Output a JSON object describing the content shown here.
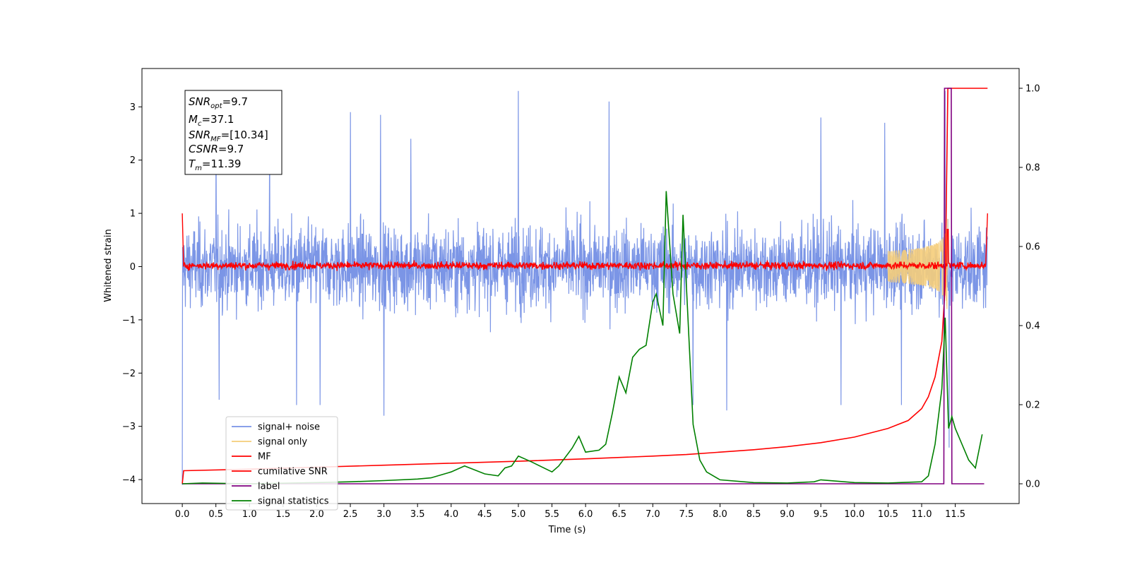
{
  "chart_data": {
    "type": "line",
    "title": "",
    "xlabel": "Time (s)",
    "ylabel": "Whitened strain",
    "ylabel_right": "",
    "xlim": [
      -0.6,
      12.45
    ],
    "ylim": [
      -4.45,
      3.72
    ],
    "ylim_right": [
      -0.05,
      1.05
    ],
    "grid": false,
    "legend_position": "lower-left",
    "x_ticks": [
      "0.0",
      "0.5",
      "1.0",
      "1.5",
      "2.0",
      "2.5",
      "3.0",
      "3.5",
      "4.0",
      "4.5",
      "5.0",
      "5.5",
      "6.0",
      "6.5",
      "7.0",
      "7.5",
      "8.0",
      "8.5",
      "9.0",
      "9.5",
      "10.0",
      "10.5",
      "11.0",
      "11.5"
    ],
    "y_ticks": [
      3,
      2,
      1,
      0,
      -1,
      -2,
      -3,
      -4
    ],
    "y_ticks_right": [
      "0.0",
      "0.2",
      "0.4",
      "0.6",
      "0.8",
      "1.0"
    ],
    "annotation_box": {
      "snr_opt": "=9.7",
      "mc": "=37.1",
      "snr_mf": "=[10.34]",
      "csnr": "=9.7",
      "tm": "=11.39"
    },
    "series": [
      {
        "name": "signal+ noise",
        "color": "#7893e6",
        "axis": "left",
        "description_points": {
          "x_range": [
            0.0,
            11.98
          ],
          "amplitude_envelope": [
            [
              0.0,
              1.5
            ],
            [
              12.0,
              1.5
            ]
          ],
          "peaks": [
            [
              0.5,
              2.5
            ],
            [
              1.3,
              2.5
            ],
            [
              2.5,
              2.9
            ],
            [
              2.95,
              2.85
            ],
            [
              3.4,
              2.4
            ],
            [
              5.0,
              3.3
            ],
            [
              6.35,
              3.1
            ],
            [
              9.5,
              2.8
            ],
            [
              10.45,
              2.7
            ],
            [
              11.35,
              3.3
            ],
            [
              0.0,
              -4.1
            ],
            [
              0.55,
              -2.5
            ],
            [
              1.7,
              -2.6
            ],
            [
              2.05,
              -2.6
            ],
            [
              3.0,
              -2.8
            ],
            [
              7.6,
              -2.6
            ],
            [
              8.1,
              -2.7
            ],
            [
              9.8,
              -2.6
            ],
            [
              10.7,
              -2.6
            ],
            [
              11.41,
              -3.4
            ]
          ]
        }
      },
      {
        "name": "signal only",
        "color": "#f5cd7a",
        "axis": "left",
        "chirp": {
          "start": 10.5,
          "merger": 11.39,
          "peak_amplitude": 0.9
        }
      },
      {
        "name": "MF",
        "color": "#ff0000",
        "axis": "left",
        "noise_band": [
          -0.1,
          0.15
        ],
        "spike_time": 11.39,
        "spike_value": 0.7,
        "start_value": 1.0,
        "end_value": 1.0
      },
      {
        "name": "cumilative SNR",
        "color": "#ff0000",
        "axis": "right",
        "x": [
          0.0,
          0.02,
          1.0,
          2.0,
          3.0,
          4.0,
          5.0,
          6.0,
          7.0,
          7.5,
          8.0,
          8.5,
          9.0,
          9.5,
          10.0,
          10.5,
          10.8,
          11.0,
          11.1,
          11.2,
          11.3,
          11.35,
          11.39,
          11.45,
          11.98
        ],
        "values": [
          0.0,
          0.033,
          0.037,
          0.042,
          0.047,
          0.052,
          0.057,
          0.063,
          0.07,
          0.074,
          0.08,
          0.086,
          0.094,
          0.104,
          0.118,
          0.14,
          0.16,
          0.19,
          0.22,
          0.27,
          0.36,
          0.5,
          1.0,
          1.0,
          1.0
        ]
      },
      {
        "name": "label",
        "color": "#800080",
        "axis": "right",
        "x": [
          0.0,
          11.33,
          11.34,
          11.44,
          11.45,
          11.93
        ],
        "values": [
          0.0,
          0.0,
          1.0,
          1.0,
          0.0,
          0.0
        ]
      },
      {
        "name": "signal statistics",
        "color": "#008000",
        "axis": "right",
        "x": [
          0.0,
          0.3,
          1.0,
          2.0,
          2.5,
          3.0,
          3.5,
          3.7,
          4.0,
          4.2,
          4.5,
          4.7,
          4.8,
          4.9,
          5.0,
          5.2,
          5.5,
          5.6,
          5.8,
          5.9,
          6.0,
          6.2,
          6.3,
          6.4,
          6.5,
          6.6,
          6.7,
          6.8,
          6.9,
          7.0,
          7.05,
          7.15,
          7.2,
          7.3,
          7.4,
          7.45,
          7.5,
          7.6,
          7.7,
          7.8,
          8.0,
          8.5,
          9.0,
          9.4,
          9.5,
          10.0,
          10.5,
          11.0,
          11.1,
          11.2,
          11.3,
          11.35,
          11.4,
          11.45,
          11.5,
          11.6,
          11.7,
          11.8,
          11.9
        ],
        "values": [
          0.0,
          0.002,
          0.0,
          0.003,
          0.005,
          0.008,
          0.012,
          0.015,
          0.03,
          0.045,
          0.025,
          0.02,
          0.04,
          0.045,
          0.07,
          0.055,
          0.03,
          0.045,
          0.09,
          0.12,
          0.08,
          0.085,
          0.1,
          0.18,
          0.27,
          0.23,
          0.32,
          0.34,
          0.35,
          0.46,
          0.48,
          0.4,
          0.74,
          0.48,
          0.38,
          0.68,
          0.5,
          0.15,
          0.06,
          0.03,
          0.01,
          0.003,
          0.002,
          0.005,
          0.01,
          0.003,
          0.002,
          0.005,
          0.02,
          0.1,
          0.24,
          0.42,
          0.14,
          0.17,
          0.14,
          0.1,
          0.06,
          0.04,
          0.125
        ]
      }
    ]
  }
}
